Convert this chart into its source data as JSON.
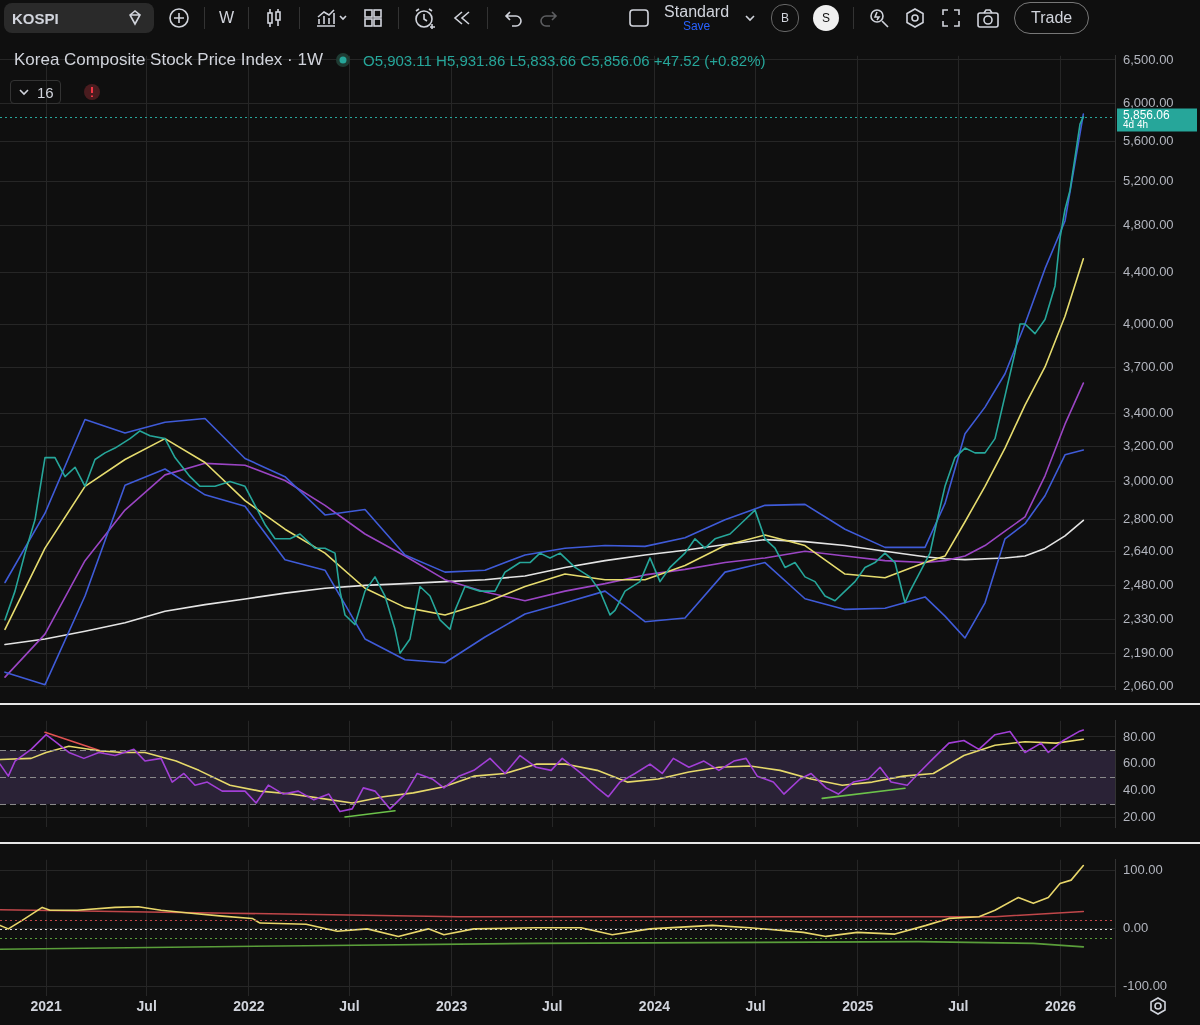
{
  "chart_data": [
    {
      "type": "line",
      "title": "Korea Composite Stock Price Index · 1W",
      "annotations": [
        "KOSPI",
        "W",
        "Standard",
        "Save",
        "B",
        "S",
        "Trade",
        "O5,903.11 H5,931.86 L5,833.66 C5,856.06 +47.52 (+0.82%)",
        "16",
        "4d 4h"
      ],
      "xlim": [
        "2020-10-10",
        "2026-04-09"
      ],
      "xticks": [
        {
          "value": "2021-01-01",
          "label": null
        },
        {
          "value": "2021-07-01",
          "label": null
        },
        {
          "value": "2022-01-01",
          "label": null
        },
        {
          "value": "2022-07-01",
          "label": null
        },
        {
          "value": "2023-01-01",
          "label": null
        },
        {
          "value": "2023-07-01",
          "label": null
        },
        {
          "value": "2024-01-01",
          "label": null
        },
        {
          "value": "2024-07-01",
          "label": null
        },
        {
          "value": "2025-01-01",
          "label": null
        },
        {
          "value": "2025-07-01",
          "label": null
        },
        {
          "value": "2026-01-01",
          "label": null
        }
      ],
      "ylim": [
        2050,
        6550
      ],
      "yticks": [
        {
          "value": 2060,
          "label": "2,060.00"
        },
        {
          "value": 2190,
          "label": "2,190.00"
        },
        {
          "value": 2330,
          "label": "2,330.00"
        },
        {
          "value": 2480,
          "label": "2,480.00"
        },
        {
          "value": 2640,
          "label": "2,640.00"
        },
        {
          "value": 2800,
          "label": "2,800.00"
        },
        {
          "value": 3000,
          "label": "3,000.00"
        },
        {
          "value": 3200,
          "label": "3,200.00"
        },
        {
          "value": 3400,
          "label": "3,400.00"
        },
        {
          "value": 3700,
          "label": "3,700.00"
        },
        {
          "value": 4000,
          "label": "4,000.00"
        },
        {
          "value": 4400,
          "label": "4,400.00"
        },
        {
          "value": 4800,
          "label": "4,800.00"
        },
        {
          "value": 5200,
          "label": "5,200.00"
        },
        {
          "value": 5600,
          "label": "5,600.00"
        },
        {
          "value": 6000,
          "label": "6,000.00"
        },
        {
          "value": 6500,
          "label": "6,500.00"
        }
      ],
      "log": "y",
      "grid": true,
      "tick_labels": "y",
      "ref_lines": [
        {
          "axis": "y",
          "value": 5856.06,
          "label": "5,856.06",
          "color": "#26a69a",
          "line_style": "dotted"
        }
      ],
      "series": [
        {
          "color": "#26a69a",
          "x": [
            "2020-10-19",
            "2020-11-06",
            "2020-11-24",
            "2020-12-12",
            "2020-12-30",
            "2021-01-17",
            "2021-02-04",
            "2021-02-22",
            "2021-03-12",
            "2021-03-30",
            "2021-04-17",
            "2021-05-05",
            "2021-06-01",
            "2021-06-19",
            "2021-07-07",
            "2021-08-03",
            "2021-08-21",
            "2021-09-17",
            "2021-10-05",
            "2021-11-01",
            "2021-11-28",
            "2021-12-25",
            "2022-01-12",
            "2022-01-30",
            "2022-02-17",
            "2022-03-16",
            "2022-04-03",
            "2022-04-30",
            "2022-05-18",
            "2022-06-05",
            "2022-06-14",
            "2022-06-23",
            "2022-07-11",
            "2022-07-29",
            "2022-08-16",
            "2022-09-03",
            "2022-09-21",
            "2022-09-30",
            "2022-10-18",
            "2022-11-05",
            "2022-11-23",
            "2022-12-11",
            "2022-12-29",
            "2023-01-07",
            "2023-01-25",
            "2023-02-21",
            "2023-03-20",
            "2023-04-07",
            "2023-05-04",
            "2023-05-22",
            "2023-06-09",
            "2023-06-27",
            "2023-07-15",
            "2023-08-11",
            "2023-09-07",
            "2023-09-25",
            "2023-10-13",
            "2023-10-22",
            "2023-11-09",
            "2023-12-06",
            "2023-12-24",
            "2024-01-11",
            "2024-01-29",
            "2024-02-25",
            "2024-03-14",
            "2024-04-01",
            "2024-04-19",
            "2024-05-16",
            "2024-06-12",
            "2024-06-30",
            "2024-07-18",
            "2024-08-05",
            "2024-08-23",
            "2024-09-10",
            "2024-09-28",
            "2024-10-16",
            "2024-11-03",
            "2024-11-21",
            "2024-12-09",
            "2024-12-27",
            "2025-01-14",
            "2025-02-01",
            "2025-02-19",
            "2025-03-09",
            "2025-03-27",
            "2025-04-05",
            "2025-04-23",
            "2025-05-11",
            "2025-05-24",
            "2025-06-07",
            "2025-06-25",
            "2025-07-13",
            "2025-07-31",
            "2025-08-18",
            "2025-09-05",
            "2025-09-23",
            "2025-10-11",
            "2025-10-20",
            "2025-10-29",
            "2025-11-16",
            "2025-12-04",
            "2025-12-22",
            "2025-12-31",
            "2026-01-09",
            "2026-01-18",
            "2026-01-27",
            "2026-02-05",
            "2026-02-11"
          ],
          "values": [
            2328,
            2454,
            2631,
            2797,
            3135,
            3135,
            3027,
            3080,
            2974,
            3124,
            3162,
            3190,
            3246,
            3292,
            3263,
            3246,
            3135,
            3027,
            2974,
            2974,
            3000,
            2974,
            2872,
            2773,
            2701,
            2701,
            2725,
            2655,
            2655,
            2631,
            2454,
            2349,
            2308,
            2454,
            2519,
            2432,
            2288,
            2190,
            2248,
            2475,
            2432,
            2328,
            2288,
            2369,
            2475,
            2454,
            2454,
            2541,
            2586,
            2586,
            2631,
            2608,
            2631,
            2563,
            2519,
            2454,
            2349,
            2369,
            2454,
            2497,
            2608,
            2497,
            2563,
            2631,
            2701,
            2655,
            2701,
            2725,
            2797,
            2847,
            2701,
            2655,
            2563,
            2586,
            2519,
            2497,
            2432,
            2411,
            2454,
            2497,
            2563,
            2586,
            2631,
            2586,
            2402,
            2454,
            2541,
            2631,
            2797,
            2974,
            3135,
            3190,
            3162,
            3162,
            3246,
            3511,
            3800,
            4005,
            4005,
            3935,
            4038,
            4295,
            4688,
            4941,
            5117,
            5436,
            5779,
            5856.06
          ]
        },
        {
          "color": "#e6dc6e",
          "x": [
            "2020-10-19",
            "2020-12-30",
            "2021-03-12",
            "2021-05-23",
            "2021-08-03",
            "2021-10-14",
            "2021-12-25",
            "2022-03-07",
            "2022-05-18",
            "2022-07-29",
            "2022-10-09",
            "2022-12-20",
            "2023-03-02",
            "2023-05-13",
            "2023-07-24",
            "2023-10-04",
            "2023-12-15",
            "2024-02-25",
            "2024-05-07",
            "2024-07-18",
            "2024-09-28",
            "2024-12-09",
            "2025-02-19",
            "2025-05-02",
            "2025-06-07",
            "2025-07-13",
            "2025-08-18",
            "2025-09-23",
            "2025-10-29",
            "2025-12-04",
            "2026-01-09",
            "2026-02-11"
          ],
          "values": [
            2288,
            2655,
            2974,
            3124,
            3246,
            3107,
            2897,
            2749,
            2631,
            2467,
            2382,
            2349,
            2402,
            2475,
            2532,
            2506,
            2506,
            2572,
            2668,
            2720,
            2668,
            2532,
            2515,
            2586,
            2617,
            2787,
            2974,
            3190,
            3451,
            3702,
            4062,
            4514
          ]
        },
        {
          "color": "#3f5bd8",
          "x": [
            "2020-10-19",
            "2020-12-30",
            "2021-03-12",
            "2021-05-23",
            "2021-08-03",
            "2021-10-14",
            "2021-12-25",
            "2022-03-07",
            "2022-05-18",
            "2022-07-29",
            "2022-10-09",
            "2022-12-20",
            "2023-03-02",
            "2023-05-13",
            "2023-07-24",
            "2023-10-04",
            "2023-12-15",
            "2024-02-25",
            "2024-05-07",
            "2024-07-18",
            "2024-09-28",
            "2024-12-09",
            "2025-02-19",
            "2025-05-02",
            "2025-06-07",
            "2025-07-13",
            "2025-08-18",
            "2025-09-23",
            "2025-10-29",
            "2025-12-04",
            "2026-01-09",
            "2026-02-11"
          ],
          "values": [
            2493,
            2831,
            3362,
            3280,
            3345,
            3368,
            3130,
            3027,
            2822,
            2850,
            2622,
            2541,
            2550,
            2622,
            2655,
            2668,
            2664,
            2706,
            2797,
            2872,
            2877,
            2749,
            2659,
            2659,
            2882,
            3275,
            3439,
            3656,
            4005,
            4433,
            4838,
            5886
          ]
        },
        {
          "color": "#3f5bd8",
          "x": [
            "2020-10-19",
            "2020-12-30",
            "2021-03-12",
            "2021-05-23",
            "2021-08-03",
            "2021-10-14",
            "2021-12-25",
            "2022-03-07",
            "2022-05-18",
            "2022-07-29",
            "2022-10-09",
            "2022-12-20",
            "2023-03-02",
            "2023-05-13",
            "2023-07-24",
            "2023-10-04",
            "2023-12-15",
            "2024-02-25",
            "2024-05-07",
            "2024-07-18",
            "2024-09-28",
            "2024-12-09",
            "2025-02-19",
            "2025-05-02",
            "2025-06-07",
            "2025-07-13",
            "2025-08-18",
            "2025-09-23",
            "2025-10-29",
            "2025-12-04",
            "2026-01-09",
            "2026-02-11"
          ],
          "values": [
            2115,
            2067,
            2432,
            2980,
            3070,
            2928,
            2867,
            2599,
            2550,
            2248,
            2164,
            2152,
            2256,
            2353,
            2402,
            2454,
            2320,
            2336,
            2541,
            2586,
            2420,
            2373,
            2378,
            2428,
            2344,
            2252,
            2402,
            2701,
            2777,
            2923,
            3151,
            3179
          ]
        },
        {
          "color": "#9b45c4",
          "x": [
            "2020-10-19",
            "2020-12-30",
            "2021-03-12",
            "2021-05-23",
            "2021-08-03",
            "2021-10-14",
            "2021-12-25",
            "2022-03-07",
            "2022-05-18",
            "2022-07-29",
            "2022-10-09",
            "2022-12-20",
            "2023-03-02",
            "2023-05-13",
            "2023-07-24",
            "2023-10-04",
            "2023-12-15",
            "2024-02-25",
            "2024-05-07",
            "2024-07-18",
            "2024-09-28",
            "2024-12-09",
            "2025-02-19",
            "2025-05-02",
            "2025-06-07",
            "2025-07-13",
            "2025-08-18",
            "2025-09-23",
            "2025-10-29",
            "2025-12-04",
            "2026-01-09",
            "2026-02-11"
          ],
          "values": [
            2096,
            2268,
            2595,
            2847,
            3037,
            3102,
            3091,
            3006,
            2872,
            2725,
            2617,
            2506,
            2450,
            2411,
            2454,
            2488,
            2528,
            2554,
            2586,
            2608,
            2640,
            2617,
            2595,
            2586,
            2595,
            2617,
            2668,
            2739,
            2812,
            3032,
            3333,
            3594
          ]
        },
        {
          "color": "#e4e4e4",
          "x": [
            "2020-10-19",
            "2020-12-30",
            "2021-03-12",
            "2021-05-23",
            "2021-08-03",
            "2021-10-14",
            "2021-12-25",
            "2022-03-07",
            "2022-05-18",
            "2022-07-29",
            "2022-10-09",
            "2022-12-20",
            "2023-03-02",
            "2023-05-13",
            "2023-07-24",
            "2023-10-04",
            "2023-12-15",
            "2024-02-25",
            "2024-05-07",
            "2024-07-18",
            "2024-09-28",
            "2024-12-09",
            "2025-02-19",
            "2025-05-02",
            "2025-06-07",
            "2025-07-13",
            "2025-08-18",
            "2025-09-23",
            "2025-10-29",
            "2025-12-04",
            "2026-01-09",
            "2026-02-11"
          ],
          "values": [
            2225,
            2248,
            2280,
            2316,
            2365,
            2394,
            2419,
            2445,
            2467,
            2480,
            2488,
            2497,
            2506,
            2523,
            2563,
            2595,
            2622,
            2645,
            2673,
            2697,
            2687,
            2668,
            2640,
            2614,
            2604,
            2600,
            2604,
            2608,
            2617,
            2654,
            2716,
            2794
          ]
        }
      ]
    },
    {
      "type": "line",
      "xlim": [
        "2020-10-10",
        "2026-04-09"
      ],
      "xticks": [
        {
          "value": "2021-01-01",
          "label": null
        },
        {
          "value": "2021-07-01",
          "label": null
        },
        {
          "value": "2022-01-01",
          "label": null
        },
        {
          "value": "2022-07-01",
          "label": null
        },
        {
          "value": "2023-01-01",
          "label": null
        },
        {
          "value": "2023-07-01",
          "label": null
        },
        {
          "value": "2024-01-01",
          "label": null
        },
        {
          "value": "2024-07-01",
          "label": null
        },
        {
          "value": "2025-01-01",
          "label": null
        },
        {
          "value": "2025-07-01",
          "label": null
        },
        {
          "value": "2026-01-01",
          "label": null
        }
      ],
      "ylim": [
        13,
        92
      ],
      "yticks": [
        {
          "value": 20,
          "label": "20.00"
        },
        {
          "value": 40,
          "label": "40.00"
        },
        {
          "value": 60,
          "label": "60.00"
        },
        {
          "value": 80,
          "label": "80.00"
        }
      ],
      "grid": true,
      "tick_labels": "y",
      "ref_lines": [
        {
          "axis": "y",
          "value": 70,
          "color": "#8a8a8a",
          "line_style": "dashed"
        },
        {
          "axis": "y",
          "value": 50,
          "color": "#8a8a8a",
          "line_style": "dashed"
        },
        {
          "axis": "y",
          "value": 30,
          "color": "#8a8a8a",
          "line_style": "dashed"
        }
      ],
      "bands": [
        {
          "axis": "y",
          "from": 30,
          "to": 70,
          "color": "#2a2236"
        }
      ],
      "series": [
        {
          "color": "#a23fd6",
          "x": [
            "2020-10-10",
            "2020-10-25",
            "2020-11-06",
            "2020-12-05",
            "2021-01-01",
            "2021-01-21",
            "2021-02-11",
            "2021-03-10",
            "2021-04-06",
            "2021-05-05",
            "2021-06-08",
            "2021-06-28",
            "2021-07-27",
            "2021-08-16",
            "2021-09-06",
            "2021-09-26",
            "2021-10-18",
            "2021-11-14",
            "2021-12-25",
            "2022-01-14",
            "2022-02-05",
            "2022-03-04",
            "2022-03-31",
            "2022-04-28",
            "2022-05-25",
            "2022-06-14",
            "2022-07-06",
            "2022-07-26",
            "2022-08-16",
            "2022-09-12",
            "2022-10-09",
            "2022-10-31",
            "2022-11-27",
            "2022-12-18",
            "2023-01-14",
            "2023-02-10",
            "2023-03-11",
            "2023-04-07",
            "2023-05-04",
            "2023-06-02",
            "2023-06-29",
            "2023-07-19",
            "2023-08-22",
            "2023-09-20",
            "2023-10-10",
            "2023-10-31",
            "2023-11-27",
            "2023-12-24",
            "2024-01-15",
            "2024-02-04",
            "2024-03-03",
            "2024-03-30",
            "2024-04-26",
            "2024-05-23",
            "2024-06-14",
            "2024-07-04",
            "2024-08-02",
            "2024-08-21",
            "2024-09-19",
            "2024-10-09",
            "2024-11-05",
            "2024-11-27",
            "2024-12-24",
            "2025-01-20",
            "2025-02-10",
            "2025-03-02",
            "2025-03-31",
            "2025-04-20",
            "2025-05-17",
            "2025-06-14",
            "2025-07-11",
            "2025-08-07",
            "2025-09-05",
            "2025-10-02",
            "2025-10-29",
            "2025-11-27",
            "2025-12-10",
            "2026-01-06",
            "2026-02-03",
            "2026-02-11"
          ],
          "values": [
            59.8,
            50.9,
            62,
            70.8,
            81.7,
            75.4,
            68.5,
            64.1,
            68.5,
            66.2,
            70.8,
            62.1,
            64.1,
            46.5,
            52.9,
            44.2,
            46.5,
            39.8,
            39.8,
            31,
            44.2,
            37.6,
            39.8,
            33.3,
            37.6,
            24.6,
            26.6,
            42.2,
            39.8,
            26.6,
            37.6,
            52.9,
            48.8,
            42.2,
            50.9,
            55.2,
            64.1,
            52.9,
            66.2,
            57.5,
            55.2,
            64.1,
            52.9,
            42.2,
            35.6,
            46.5,
            52.9,
            59.8,
            52.9,
            64.1,
            57.5,
            62.1,
            55.2,
            62.1,
            64.1,
            50.9,
            46.5,
            37.6,
            48.8,
            52.9,
            42.2,
            37.6,
            46.5,
            48.8,
            57.5,
            46.5,
            44.2,
            52.9,
            64.1,
            75.4,
            77.4,
            70.8,
            81.7,
            84,
            68.5,
            75.4,
            68.5,
            77.4,
            84,
            85.2
          ]
        },
        {
          "color": "#e6d96a",
          "x": [
            "2020-10-10",
            "2020-12-05",
            "2021-01-01",
            "2021-02-11",
            "2021-04-06",
            "2021-05-18",
            "2021-06-28",
            "2021-08-23",
            "2021-10-03",
            "2021-11-28",
            "2022-01-21",
            "2022-03-18",
            "2022-05-11",
            "2022-07-06",
            "2022-08-31",
            "2022-10-24",
            "2022-12-18",
            "2023-02-10",
            "2023-04-07",
            "2023-06-02",
            "2023-07-26",
            "2023-09-20",
            "2023-11-13",
            "2024-01-08",
            "2024-03-03",
            "2024-04-26",
            "2024-06-21",
            "2024-08-14",
            "2024-10-09",
            "2024-12-04",
            "2025-01-27",
            "2025-03-24",
            "2025-05-17",
            "2025-07-11",
            "2025-09-05",
            "2025-10-29",
            "2025-12-24",
            "2026-02-11"
          ],
          "values": [
            63.3,
            64.1,
            68.5,
            73.1,
            69.8,
            68.5,
            68.5,
            62.1,
            55.2,
            44.2,
            39.8,
            37.6,
            34.4,
            31,
            35.6,
            38.5,
            43.1,
            50.9,
            52.9,
            59.8,
            59.8,
            55.2,
            46.5,
            48.8,
            54,
            57.5,
            58.4,
            55.2,
            48.8,
            44.2,
            46.5,
            50.9,
            52.9,
            66.2,
            73.8,
            76.5,
            75.4,
            78.3
          ]
        },
        {
          "color": "#e05252",
          "x": [
            "2020-12-30",
            "2021-04-14"
          ],
          "values": [
            83.5,
            69
          ]
        },
        {
          "color": "#6cc24a",
          "x": [
            "2022-06-23",
            "2022-09-21"
          ],
          "values": [
            20.6,
            25.2
          ]
        },
        {
          "color": "#6cc24a",
          "x": [
            "2024-10-29",
            "2025-03-27"
          ],
          "values": [
            34.4,
            41.9
          ]
        }
      ]
    },
    {
      "type": "line",
      "xlim": [
        "2020-10-10",
        "2026-04-09"
      ],
      "xticks": [
        {
          "value": "2021-01-01",
          "label": "2021"
        },
        {
          "value": "2021-07-01",
          "label": "Jul"
        },
        {
          "value": "2022-01-01",
          "label": "2022"
        },
        {
          "value": "2022-07-01",
          "label": "Jul"
        },
        {
          "value": "2023-01-01",
          "label": "2023"
        },
        {
          "value": "2023-07-01",
          "label": "Jul"
        },
        {
          "value": "2024-01-01",
          "label": "2024"
        },
        {
          "value": "2024-07-01",
          "label": "Jul"
        },
        {
          "value": "2025-01-01",
          "label": "2025"
        },
        {
          "value": "2025-07-01",
          "label": "Jul"
        },
        {
          "value": "2026-01-01",
          "label": "2026"
        }
      ],
      "ylim": [
        -116,
        119
      ],
      "yticks": [
        {
          "value": 100,
          "label": "100.00"
        },
        {
          "value": 0,
          "label": "0.00"
        },
        {
          "value": -100,
          "label": "-100.00"
        }
      ],
      "grid": true,
      "ref_lines": [
        {
          "axis": "y",
          "value": 15,
          "color": "#c0474a",
          "line_style": "dotted"
        },
        {
          "axis": "y",
          "value": 0,
          "color": "#e0e0e0",
          "line_style": "dotted"
        },
        {
          "axis": "y",
          "value": -15,
          "color": "#5a9e3a",
          "line_style": "dotted"
        }
      ],
      "series": [
        {
          "color": "#e8d66a",
          "x": [
            "2020-10-10",
            "2020-10-25",
            "2020-11-21",
            "2020-12-25",
            "2021-01-08",
            "2021-02-26",
            "2021-05-05",
            "2021-06-16",
            "2021-07-27",
            "2021-09-19",
            "2021-11-14",
            "2022-01-07",
            "2022-01-21",
            "2022-04-14",
            "2022-06-09",
            "2022-08-02",
            "2022-09-27",
            "2022-11-20",
            "2022-12-18",
            "2023-02-10",
            "2023-06-02",
            "2023-08-22",
            "2023-10-17",
            "2023-12-24",
            "2024-04-14",
            "2024-06-21",
            "2024-09-25",
            "2024-11-05",
            "2024-12-31",
            "2025-03-09",
            "2025-05-04",
            "2025-06-14",
            "2025-08-07",
            "2025-09-05",
            "2025-10-17",
            "2025-11-13",
            "2025-12-10",
            "2025-12-31",
            "2026-01-20",
            "2026-02-11"
          ],
          "values": [
            6,
            0,
            16,
            37,
            32,
            32,
            37,
            38,
            32,
            27,
            22,
            18,
            10,
            8,
            -4,
            0,
            -13,
            0,
            -10,
            0,
            2,
            2,
            -10,
            0,
            6,
            2,
            -6,
            -13,
            -6,
            -9,
            6,
            18,
            21,
            32,
            54,
            44,
            54,
            78,
            84,
            109
          ]
        },
        {
          "color": "#c0474a",
          "x": [
            "2020-10-10",
            "2021-11-28",
            "2023-01-14",
            "2024-07-18",
            "2025-09-05",
            "2026-02-11"
          ],
          "values": [
            33,
            27,
            21,
            21,
            21,
            30
          ]
        },
        {
          "color": "#5a9e3a",
          "x": [
            "2020-10-10",
            "2022-04-14",
            "2023-06-02",
            "2025-04-20",
            "2025-11-13",
            "2026-02-11"
          ],
          "values": [
            -35,
            -29,
            -25,
            -22,
            -25,
            -31
          ]
        }
      ]
    }
  ]
}
